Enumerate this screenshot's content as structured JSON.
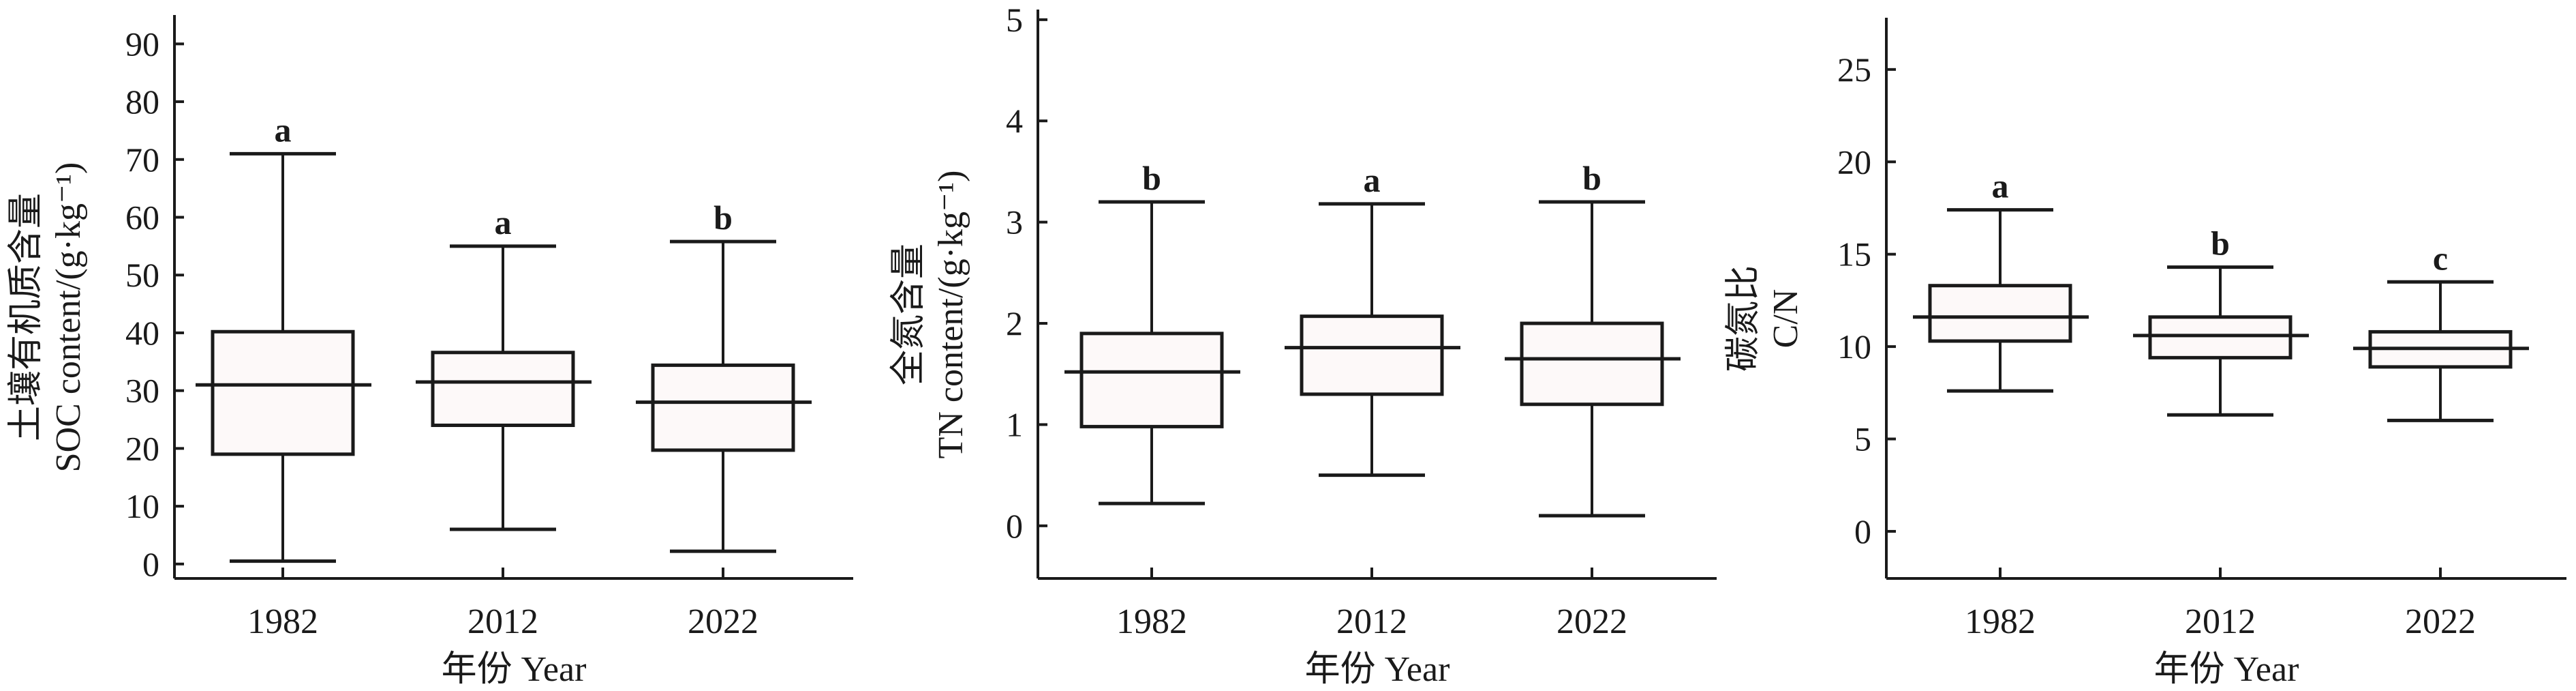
{
  "chart_data": [
    {
      "type": "box",
      "categories": [
        "1982",
        "2012",
        "2022"
      ],
      "ylabel_cn": "土壤有机质含量",
      "ylabel_en": "SOC content/(g·kg⁻¹)",
      "xlabel": "年份 Year",
      "ylim": [
        -2.5,
        95
      ],
      "yticks": [
        0,
        10,
        20,
        30,
        40,
        50,
        60,
        70,
        80,
        90
      ],
      "boxes": [
        {
          "min": 0.5,
          "q1": 19,
          "median": 31,
          "q3": 40.2,
          "max": 71,
          "letter": "a"
        },
        {
          "min": 6,
          "q1": 24,
          "median": 31.5,
          "q3": 36.6,
          "max": 55,
          "letter": "a"
        },
        {
          "min": 2.2,
          "q1": 19.7,
          "median": 28,
          "q3": 34.4,
          "max": 55.8,
          "letter": "b"
        }
      ]
    },
    {
      "type": "box",
      "categories": [
        "1982",
        "2012",
        "2022"
      ],
      "ylabel_cn": "全氮含量",
      "ylabel_en": "TN content/(g·kg⁻¹)",
      "xlabel": "年份 Year",
      "ylim": [
        -0.52,
        5.1
      ],
      "yticks": [
        0,
        1,
        2,
        3,
        4,
        5
      ],
      "boxes": [
        {
          "min": 0.22,
          "q1": 0.98,
          "median": 1.52,
          "q3": 1.9,
          "max": 3.2,
          "letter": "b"
        },
        {
          "min": 0.5,
          "q1": 1.3,
          "median": 1.76,
          "q3": 2.07,
          "max": 3.18,
          "letter": "a"
        },
        {
          "min": 0.1,
          "q1": 1.2,
          "median": 1.65,
          "q3": 2.0,
          "max": 3.2,
          "letter": "b"
        }
      ]
    },
    {
      "type": "box",
      "categories": [
        "1982",
        "2012",
        "2022"
      ],
      "ylabel_cn": "碳氮比",
      "ylabel_en": "C/N",
      "xlabel": "年份 Year",
      "ylim": [
        -2.55,
        27.8
      ],
      "yticks": [
        0,
        5,
        10,
        15,
        20,
        25
      ],
      "boxes": [
        {
          "min": 7.6,
          "q1": 10.3,
          "median": 11.6,
          "q3": 13.3,
          "max": 17.4,
          "letter": "a"
        },
        {
          "min": 6.3,
          "q1": 9.4,
          "median": 10.6,
          "q3": 11.6,
          "max": 14.3,
          "letter": "b"
        },
        {
          "min": 6.0,
          "q1": 8.9,
          "median": 9.9,
          "q3": 10.8,
          "max": 13.5,
          "letter": "c"
        }
      ]
    }
  ],
  "colors": {
    "line": "#1a1a1a",
    "box_fill": "#fdf9f9"
  }
}
